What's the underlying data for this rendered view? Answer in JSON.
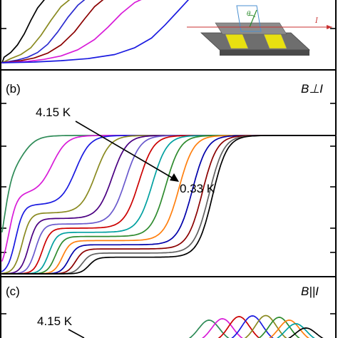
{
  "chart_data": [
    {
      "panel": "a",
      "type": "line",
      "xlim": [
        0,
        1
      ],
      "ylim": [
        0,
        1
      ],
      "series": [
        {
          "color": "#000000",
          "x": [
            0.01,
            0.03,
            0.05,
            0.07,
            0.09,
            0.11,
            0.13,
            0.15,
            0.17,
            0.19,
            0.21
          ],
          "y": [
            0.08,
            0.15,
            0.26,
            0.42,
            0.62,
            0.8,
            0.92,
            0.98,
            1.0,
            1.0,
            1.0
          ]
        },
        {
          "color": "#8a8a20",
          "x": [
            0.03,
            0.06,
            0.09,
            0.12,
            0.15,
            0.18,
            0.21,
            0.24,
            0.27
          ],
          "y": [
            0.06,
            0.12,
            0.22,
            0.4,
            0.62,
            0.82,
            0.94,
            1.0,
            1.0
          ]
        },
        {
          "color": "#2b2bcf",
          "x": [
            0.05,
            0.08,
            0.11,
            0.14,
            0.17,
            0.2,
            0.23,
            0.26,
            0.29,
            0.32
          ],
          "y": [
            0.04,
            0.08,
            0.15,
            0.27,
            0.45,
            0.66,
            0.84,
            0.96,
            1.0,
            1.0
          ]
        },
        {
          "color": "#8b0000",
          "x": [
            0.06,
            0.1,
            0.14,
            0.18,
            0.22,
            0.25,
            0.28,
            0.31,
            0.34,
            0.37
          ],
          "y": [
            0.03,
            0.07,
            0.14,
            0.26,
            0.45,
            0.64,
            0.82,
            0.94,
            1.0,
            1.0
          ]
        },
        {
          "color": "#d81bd8",
          "x": [
            0.08,
            0.13,
            0.18,
            0.23,
            0.28,
            0.32,
            0.36,
            0.4,
            0.44,
            0.47
          ],
          "y": [
            0.02,
            0.05,
            0.1,
            0.19,
            0.34,
            0.52,
            0.72,
            0.88,
            0.97,
            1.0
          ]
        },
        {
          "color": "#1a1ae0",
          "x": [
            0.1,
            0.18,
            0.26,
            0.34,
            0.4,
            0.45,
            0.49,
            0.53,
            0.56,
            0.58
          ],
          "y": [
            0.01,
            0.03,
            0.06,
            0.12,
            0.22,
            0.36,
            0.55,
            0.76,
            0.92,
            1.0
          ]
        }
      ]
    },
    {
      "panel": "b",
      "panel_label": "(b)",
      "field_label": "B⊥I",
      "annotation_high": "4.15 K",
      "annotation_low": "0.33 K",
      "type": "line",
      "xlim": [
        0,
        1
      ],
      "ylim": [
        0,
        1
      ],
      "series": [
        {
          "color": "#2e8b57",
          "mid1": 0.005,
          "mid2": 0.06,
          "plateau": 0.72
        },
        {
          "color": "#d81bd8",
          "mid1": 0.02,
          "mid2": 0.15,
          "plateau": 0.58
        },
        {
          "color": "#1a1ae0",
          "mid1": 0.04,
          "mid2": 0.22,
          "plateau": 0.5
        },
        {
          "color": "#8a8a20",
          "mid1": 0.06,
          "mid2": 0.28,
          "plateau": 0.44
        },
        {
          "color": "#4b0082",
          "mid1": 0.08,
          "mid2": 0.33,
          "plateau": 0.4
        },
        {
          "color": "#6a5acd",
          "mid1": 0.1,
          "mid2": 0.37,
          "plateau": 0.36
        },
        {
          "color": "#cc0000",
          "mid1": 0.12,
          "mid2": 0.41,
          "plateau": 0.33
        },
        {
          "color": "#00a0a0",
          "mid1": 0.14,
          "mid2": 0.45,
          "plateau": 0.3
        },
        {
          "color": "#2e8b2e",
          "mid1": 0.16,
          "mid2": 0.49,
          "plateau": 0.27
        },
        {
          "color": "#ff7f0e",
          "mid1": 0.18,
          "mid2": 0.53,
          "plateau": 0.24
        },
        {
          "color": "#0000aa",
          "mid1": 0.2,
          "mid2": 0.57,
          "plateau": 0.21
        },
        {
          "color": "#8b0000",
          "mid1": 0.22,
          "mid2": 0.6,
          "plateau": 0.18
        },
        {
          "color": "#606060",
          "mid1": 0.24,
          "mid2": 0.62,
          "plateau": 0.15
        },
        {
          "color": "#000000",
          "mid1": 0.26,
          "mid2": 0.63,
          "plateau": 0.12
        }
      ]
    },
    {
      "panel": "c",
      "panel_label": "(c)",
      "field_label": "B||I",
      "annotation_high": "4.15 K",
      "type": "line",
      "xlim": [
        0,
        1
      ],
      "ylim": [
        0,
        1
      ],
      "series": [
        {
          "color": "#2e8b57",
          "center": 0.62,
          "amp": 0.62
        },
        {
          "color": "#d81bd8",
          "center": 0.66,
          "amp": 0.66
        },
        {
          "color": "#cc0000",
          "center": 0.71,
          "amp": 0.72
        },
        {
          "color": "#1a1ae0",
          "center": 0.75,
          "amp": 0.74
        },
        {
          "color": "#8a8a20",
          "center": 0.79,
          "amp": 0.75
        },
        {
          "color": "#2e8b2e",
          "center": 0.83,
          "amp": 0.7
        },
        {
          "color": "#ff7f0e",
          "center": 0.86,
          "amp": 0.62
        },
        {
          "color": "#00a0a0",
          "center": 0.88,
          "amp": 0.52
        },
        {
          "color": "#000000",
          "center": 0.91,
          "amp": 0.4
        }
      ]
    }
  ],
  "inset": {
    "theta_label": "θ",
    "current_label": "I"
  }
}
